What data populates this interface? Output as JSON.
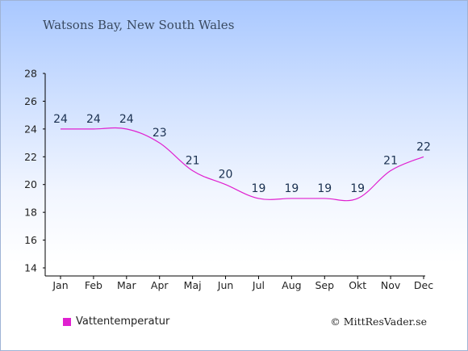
{
  "header": {
    "title": "Watsons Bay, New South Wales"
  },
  "footer": {
    "credit": "© MittResVader.se"
  },
  "colors": {
    "line": "#e020d0",
    "axis": "#000000",
    "label": "#1a3050"
  },
  "chart_data": {
    "type": "line",
    "title": "Watsons Bay, New South Wales",
    "categories": [
      "Jan",
      "Feb",
      "Mar",
      "Apr",
      "Maj",
      "Jun",
      "Jul",
      "Aug",
      "Sep",
      "Okt",
      "Nov",
      "Dec"
    ],
    "series": [
      {
        "name": "Vattentemperatur",
        "values": [
          24,
          24,
          24,
          23,
          21,
          20,
          19,
          19,
          19,
          19,
          21,
          22
        ]
      }
    ],
    "ylim": [
      14,
      28
    ],
    "yticks": [
      14,
      16,
      18,
      20,
      22,
      24,
      26,
      28
    ],
    "grid": false,
    "legend": "bottom-left"
  }
}
